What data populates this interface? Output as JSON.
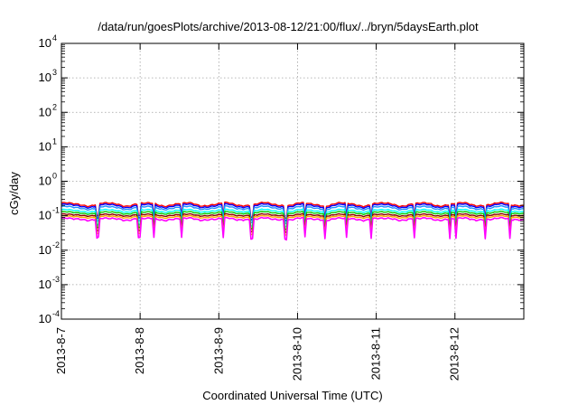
{
  "chart_data": {
    "type": "line",
    "title": "/data/run/goesPlots/archive/2013-08-12/21:00/flux/../bryn/5daysEarth.plot",
    "xlabel": "Coordinated Universal Time (UTC)",
    "ylabel": "cGy/day",
    "y_scale": "log",
    "ylim": [
      0.0001,
      10000
    ],
    "xlim": [
      "2013-08-07",
      "2013-08-12 21:00"
    ],
    "xlim_days": [
      0,
      5.875
    ],
    "grid": true,
    "legend": "none",
    "x_ticks": [
      "2013-8-7",
      "2013-8-8",
      "2013-8-9",
      "2013-8-10",
      "2013-8-11",
      "2013-8-12"
    ],
    "y_ticks": [
      {
        "base": "10",
        "exp": "-4",
        "value": 0.0001
      },
      {
        "base": "10",
        "exp": "-3",
        "value": 0.001
      },
      {
        "base": "10",
        "exp": "-2",
        "value": 0.01
      },
      {
        "base": "10",
        "exp": "-1",
        "value": 0.1
      },
      {
        "base": "10",
        "exp": "0",
        "value": 1
      },
      {
        "base": "10",
        "exp": "1",
        "value": 10
      },
      {
        "base": "10",
        "exp": "2",
        "value": 100
      },
      {
        "base": "10",
        "exp": "3",
        "value": 1000
      },
      {
        "base": "10",
        "exp": "4",
        "value": 10000
      }
    ],
    "dips_days": [
      0.46,
      0.99,
      1.18,
      1.52,
      2.05,
      2.42,
      2.85,
      3.1,
      3.35,
      3.62,
      3.94,
      4.48,
      4.93,
      5.02,
      5.38,
      5.7
    ],
    "series": [
      {
        "color": "#ff0000",
        "base": 0.215,
        "amp": 0.11,
        "noise": 0.06,
        "dip": 0.45
      },
      {
        "color": "#0000ff",
        "base": 0.195,
        "amp": 0.11,
        "noise": 0.06,
        "dip": 0.42
      },
      {
        "color": "#1e90ff",
        "base": 0.17,
        "amp": 0.1,
        "noise": 0.06,
        "dip": 0.4
      },
      {
        "color": "#00ffff",
        "base": 0.14,
        "amp": 0.08,
        "noise": 0.05,
        "dip": 0.38
      },
      {
        "color": "#00cc00",
        "base": 0.122,
        "amp": 0.07,
        "noise": 0.05,
        "dip": 0.36
      },
      {
        "color": "#8b0000",
        "base": 0.105,
        "amp": 0.06,
        "noise": 0.05,
        "dip": 0.34
      },
      {
        "color": "#ffa500",
        "base": 0.093,
        "amp": 0.06,
        "noise": 0.05,
        "dip": 0.32
      },
      {
        "color": "#ff00ff",
        "base": 0.08,
        "amp": 0.07,
        "noise": 0.07,
        "dip": 0.28
      }
    ]
  }
}
